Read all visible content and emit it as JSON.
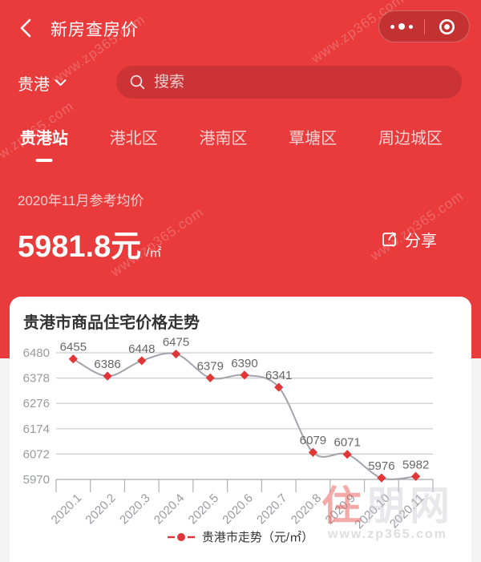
{
  "app": {
    "title": "新房查房价"
  },
  "icons": {
    "back": "chevron-left-icon",
    "more": "three-dots-icon",
    "minimize": "record-circle-icon",
    "city_dropdown": "chevron-down-icon",
    "search": "magnifier-icon",
    "share": "share-box-arrow-icon"
  },
  "location": {
    "city": "贵港"
  },
  "search": {
    "placeholder": "搜索"
  },
  "tabs": [
    {
      "label": "贵港站",
      "active": true
    },
    {
      "label": "港北区",
      "active": false
    },
    {
      "label": "港南区",
      "active": false
    },
    {
      "label": "覃塘区",
      "active": false
    },
    {
      "label": "周边城区",
      "active": false
    }
  ],
  "price_section": {
    "caption": "2020年11月参考均价",
    "value": "5981.8",
    "currency_unit": "元",
    "area_unit": "/㎡",
    "share_label": "分享"
  },
  "watermarks": {
    "diagonal_text": "www.zp365.com",
    "logo_main_red": "住",
    "logo_main_rest": "朋网",
    "logo_site": "www.zp365.com"
  },
  "chart_data": {
    "type": "line",
    "title": "贵港市商品住宅价格走势",
    "categories": [
      "2020.1",
      "2020.2",
      "2020.3",
      "2020.4",
      "2020.5",
      "2020.6",
      "2020.7",
      "2020.8",
      "2020.9",
      "2020.10",
      "2020.11"
    ],
    "series": [
      {
        "name": "贵港市走势（元/㎡）",
        "values": [
          6455,
          6386,
          6448,
          6475,
          6379,
          6390,
          6341,
          6079,
          6071,
          5976,
          5982
        ]
      }
    ],
    "ylim": [
      5970,
      6480
    ],
    "yticks": [
      6480,
      6378,
      6276,
      6174,
      6072,
      5970
    ],
    "grid": true,
    "smooth": true,
    "legend_position": "bottom",
    "xlabel_rotate": 45,
    "line_color": "#a3a3ab",
    "marker": "diamond",
    "marker_color": "#e23537",
    "grid_color": "#c9c9cf",
    "axis_color": "#b0b0b6",
    "tick_label_color": "#999aa0",
    "point_label_color": "#666666"
  },
  "colors": {
    "header_bg": "#e93b3c",
    "search_pill_bg": "#cb3336",
    "card_bg": "#ffffff",
    "accent_red": "#e23537"
  }
}
